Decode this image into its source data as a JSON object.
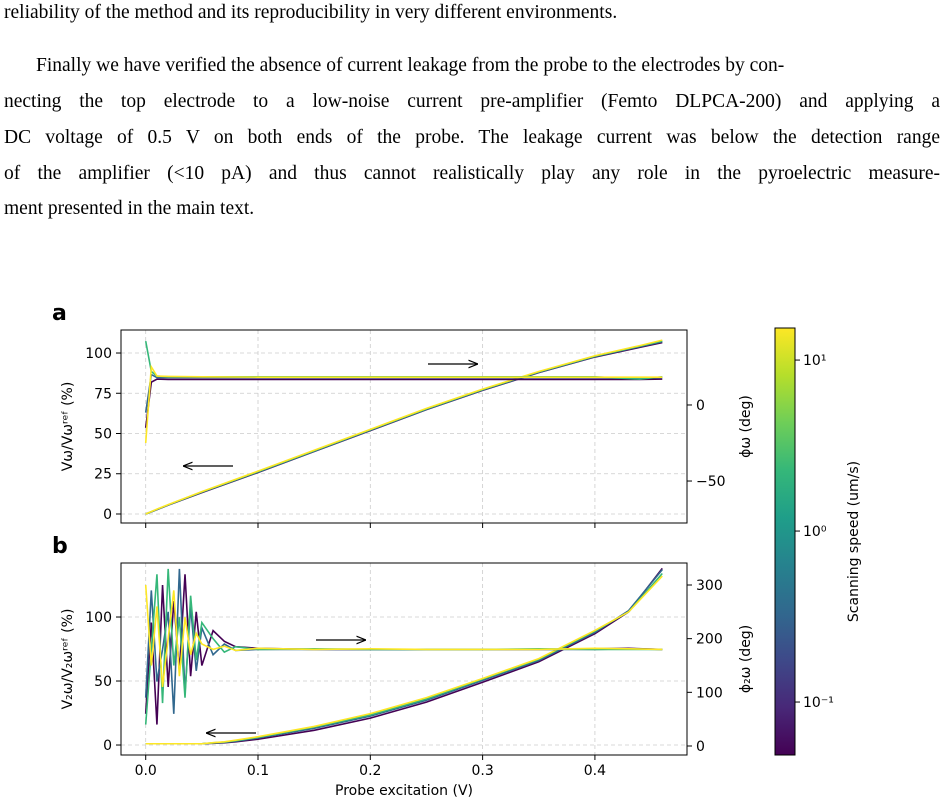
{
  "text": {
    "lines": [
      "reliability of the method and its reproducibility in very different environments.",
      "Finally we have verified the absence of current leakage from the probe to the electrodes by con-",
      "necting the top electrode to a low-noise current pre-amplifier (Femto DLPCA-200) and applying a",
      "DC voltage of 0.5 V on both ends of the probe. The leakage current was below the detection range",
      "of the amplifier (<10 pA) and thus cannot realistically play any role in the pyroelectric measure-",
      "ment presented in the main text."
    ]
  },
  "chart_data": [
    {
      "type": "line",
      "panel": "a",
      "x": [
        0,
        0.005,
        0.01,
        0.02,
        0.05,
        0.1,
        0.15,
        0.2,
        0.25,
        0.3,
        0.35,
        0.4,
        0.44,
        0.46
      ],
      "xlim": [
        -0.022,
        0.482
      ],
      "xticks": [
        0,
        0.1,
        0.2,
        0.3,
        0.4
      ],
      "ylim": [
        -5.6,
        114.3
      ],
      "yticks": [
        0,
        25,
        50,
        75,
        100
      ],
      "y2lim": [
        -77.6,
        49.3
      ],
      "y2ticks": [
        {
          "value": -50,
          "label": "−50"
        },
        0
      ],
      "ylabel": "Vω/Vωʳᵉᶠ (%)",
      "y2label": "ϕω (deg)",
      "grid": true,
      "series": [
        {
          "color": "#440154",
          "values": [
            0,
            1.3,
            2.7,
            5.5,
            13.3,
            25.8,
            38.8,
            51.8,
            64.8,
            76.8,
            87.8,
            97.5,
            103.5,
            106.5
          ]
        },
        {
          "color": "#31688e",
          "values": [
            0,
            1.4,
            2.8,
            5.6,
            13.5,
            26,
            39,
            52,
            65,
            77,
            88,
            97.8,
            104,
            107
          ]
        },
        {
          "color": "#35b779",
          "values": [
            0,
            1.4,
            2.9,
            5.7,
            13.7,
            26.3,
            39.3,
            52.3,
            65.3,
            77.3,
            88.3,
            98,
            104.3,
            107.5
          ]
        },
        {
          "color": "#fde725",
          "values": [
            0,
            1.5,
            3,
            5.8,
            13.9,
            26.6,
            39.6,
            52.6,
            65.6,
            77.6,
            88.5,
            98.3,
            104.6,
            108
          ]
        },
        {
          "color": "#440154",
          "axis": "y2",
          "values": [
            -15,
            15,
            17,
            16.8,
            16.8,
            16.8,
            16.8,
            16.8,
            16.8,
            16.8,
            16.8,
            16.8,
            16.8,
            17
          ]
        },
        {
          "color": "#31688e",
          "axis": "y2",
          "values": [
            -5,
            20,
            18,
            18,
            18,
            18,
            18,
            18,
            18,
            18,
            18,
            18,
            18,
            18
          ]
        },
        {
          "color": "#35b779",
          "axis": "y2",
          "values": [
            42,
            22,
            19,
            18.5,
            18.5,
            18.5,
            18.5,
            18.5,
            18.5,
            18.5,
            18.5,
            18.5,
            17,
            18.5
          ]
        },
        {
          "color": "#fde725",
          "axis": "y2",
          "values": [
            -25,
            25,
            19,
            18.8,
            18.5,
            18.3,
            18.3,
            18.3,
            18.3,
            18.3,
            18.3,
            18.3,
            18.3,
            18.3
          ]
        }
      ]
    },
    {
      "type": "line",
      "panel": "b",
      "x": [
        0,
        0.005,
        0.01,
        0.015,
        0.02,
        0.025,
        0.03,
        0.035,
        0.04,
        0.045,
        0.05,
        0.06,
        0.07,
        0.08,
        0.1,
        0.15,
        0.2,
        0.25,
        0.3,
        0.35,
        0.4,
        0.43,
        0.46
      ],
      "xlim": [
        -0.022,
        0.482
      ],
      "xticks": [
        {
          "value": 0,
          "label": "0.0"
        },
        0.1,
        0.2,
        0.3,
        0.4
      ],
      "xlabel": "Probe excitation (V)",
      "ylim": [
        -7.8,
        142.2
      ],
      "yticks": [
        0,
        50,
        100
      ],
      "y2lim": [
        -16.8,
        341
      ],
      "y2ticks": [
        0,
        100,
        200,
        300
      ],
      "ylabel": "V₂ω/V₂ωʳᵉᶠ (%)",
      "y2label": "ϕ₂ω (deg)",
      "grid": true,
      "series": [
        {
          "color": "#440154",
          "values": [
            1,
            1,
            1,
            1,
            1,
            1,
            1,
            1,
            1,
            1,
            1,
            1.3,
            1.7,
            2.5,
            4.5,
            11.5,
            21,
            33.5,
            49,
            65,
            87,
            104,
            138
          ]
        },
        {
          "color": "#31688e",
          "values": [
            1,
            1,
            1,
            1,
            1,
            1,
            1,
            1,
            1,
            1,
            1,
            1.5,
            2,
            3,
            5.5,
            13,
            22.6,
            35,
            50.5,
            66,
            88,
            105,
            137
          ]
        },
        {
          "color": "#35b779",
          "values": [
            1,
            1,
            1,
            1,
            1,
            1,
            1,
            1,
            1,
            1,
            1,
            1.7,
            2.3,
            3.4,
            6,
            14,
            23.5,
            36,
            51.5,
            67,
            89,
            104,
            134
          ]
        },
        {
          "color": "#fde725",
          "values": [
            1,
            1,
            1,
            1,
            1,
            1,
            1,
            1,
            1,
            1,
            1,
            1.8,
            2.5,
            3.8,
            6.5,
            14.5,
            24.5,
            37,
            52,
            67.5,
            89.5,
            104,
            132
          ]
        },
        {
          "color": "#440154",
          "axis": "y2",
          "values": [
            60,
            230,
            40,
            300,
            110,
            270,
            140,
            320,
            130,
            250,
            150,
            215,
            195,
            185,
            182,
            180,
            180,
            180,
            180,
            180,
            181,
            182,
            180
          ]
        },
        {
          "color": "#31688e",
          "axis": "y2",
          "values": [
            90,
            290,
            120,
            180,
            250,
            60,
            330,
            100,
            260,
            140,
            220,
            170,
            190,
            178,
            180,
            180,
            180,
            180,
            180,
            180,
            180,
            181,
            180
          ]
        },
        {
          "color": "#35b779",
          "axis": "y2",
          "values": [
            40,
            180,
            320,
            80,
            330,
            150,
            240,
            90,
            280,
            160,
            230,
            200,
            175,
            185,
            180,
            181,
            180,
            180,
            180,
            181,
            180,
            180,
            180
          ]
        },
        {
          "color": "#fde725",
          "axis": "y2",
          "values": [
            300,
            150,
            260,
            110,
            200,
            290,
            130,
            240,
            170,
            210,
            190,
            180,
            186,
            178,
            182,
            180,
            181,
            180,
            180,
            180,
            182,
            181,
            180
          ]
        }
      ]
    },
    {
      "type": "colorbar",
      "label": "Scanning speed (um/s)",
      "log": true,
      "lim": [
        0.049,
        15.4
      ],
      "ticks": [
        {
          "value": 0.1,
          "label": "10⁻¹"
        },
        {
          "value": 1,
          "label": "10⁰"
        },
        {
          "value": 10,
          "label": "10¹"
        }
      ],
      "colors": [
        "#440154",
        "#482878",
        "#3e4989",
        "#31688e",
        "#26828e",
        "#1f9e89",
        "#35b779",
        "#6ece58",
        "#b5de2b",
        "#fde725"
      ]
    }
  ]
}
